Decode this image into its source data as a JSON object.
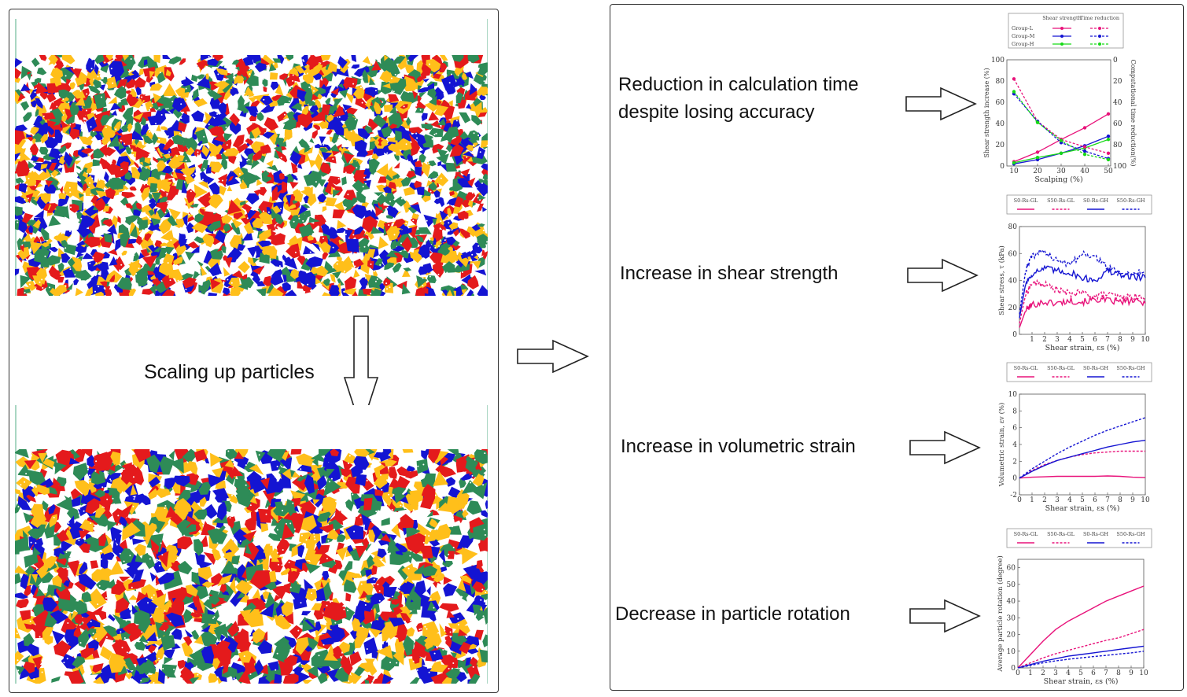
{
  "left": {
    "caption": "Scaling up particles",
    "colors": [
      "#e41a1c",
      "#1414d2",
      "#2e8b57",
      "#ffbf1a"
    ]
  },
  "right": {
    "rows": [
      {
        "label": [
          "Reduction in calculation time",
          "despite losing  accuracy"
        ]
      },
      {
        "label": [
          "Increase in shear strength"
        ]
      },
      {
        "label": [
          "Increase in volumetric strain"
        ]
      },
      {
        "label": [
          "Decrease in particle rotation"
        ]
      }
    ]
  },
  "chart_data": [
    {
      "type": "line",
      "title": "",
      "xlabel": "Scalping (%)",
      "ylabel": "Shear strength increase (%)",
      "y2label": "Computational time reduction(%)",
      "x": [
        10,
        20,
        30,
        40,
        50
      ],
      "xlim": [
        7,
        51
      ],
      "ylim": [
        0,
        100
      ],
      "y2lim": [
        100,
        0
      ],
      "xticks": [
        10,
        20,
        30,
        40,
        50
      ],
      "yticks": [
        0,
        20,
        40,
        60,
        80,
        100
      ],
      "y2ticks": [
        0,
        20,
        40,
        60,
        80,
        100
      ],
      "legend_headers": [
        "Shear strength",
        "Time reduction"
      ],
      "series": [
        {
          "name": "Group-L",
          "kind": "shear",
          "color": "#e8127a",
          "dashed": false,
          "values": [
            4,
            13,
            25,
            36,
            49
          ]
        },
        {
          "name": "Group-M",
          "kind": "shear",
          "color": "#1414d2",
          "dashed": false,
          "values": [
            2,
            6,
            12,
            19,
            28
          ]
        },
        {
          "name": "Group-H",
          "kind": "shear",
          "color": "#16d916",
          "dashed": false,
          "values": [
            3,
            8,
            12,
            17,
            25
          ]
        },
        {
          "name": "Group-L",
          "kind": "time",
          "color": "#e8127a",
          "dashed": true,
          "axis": "y2",
          "values": [
            18,
            58,
            75,
            82,
            88
          ]
        },
        {
          "name": "Group-M",
          "kind": "time",
          "color": "#1414d2",
          "dashed": true,
          "axis": "y2",
          "values": [
            32,
            58,
            78,
            86,
            93
          ]
        },
        {
          "name": "Group-H",
          "kind": "time",
          "color": "#16d916",
          "dashed": true,
          "axis": "y2",
          "values": [
            30,
            59,
            76,
            89,
            94
          ]
        }
      ]
    },
    {
      "type": "line",
      "title": "",
      "xlabel": "Shear strain, εs (%)",
      "ylabel": "Shear stress, τ (kPa)",
      "xlim": [
        0,
        10
      ],
      "ylim": [
        0,
        80
      ],
      "xticks": [
        1,
        2,
        3,
        4,
        5,
        6,
        7,
        8,
        9,
        10
      ],
      "yticks": [
        0,
        20,
        40,
        60,
        80
      ],
      "noisy": true,
      "series": [
        {
          "name": "S0-Rs-GL",
          "color": "#e8127a",
          "dashed": false,
          "x": [
            0,
            0.5,
            1,
            2,
            3,
            4,
            5,
            6,
            7,
            8,
            9,
            10
          ],
          "values": [
            5,
            18,
            22,
            24,
            23,
            25,
            24,
            26,
            25,
            24,
            25,
            23
          ]
        },
        {
          "name": "S50-Rs-GL",
          "color": "#e8127a",
          "dashed": true,
          "x": [
            0,
            0.5,
            1,
            2,
            3,
            4,
            5,
            6,
            7,
            8,
            9,
            10
          ],
          "values": [
            8,
            30,
            38,
            37,
            33,
            30,
            31,
            28,
            30,
            27,
            28,
            27
          ]
        },
        {
          "name": "S0-Rs-GH",
          "color": "#1414d2",
          "dashed": false,
          "x": [
            0,
            0.5,
            1,
            2,
            3,
            4,
            5,
            6,
            7,
            8,
            9,
            10
          ],
          "values": [
            12,
            38,
            45,
            49,
            47,
            46,
            42,
            40,
            47,
            44,
            43,
            42
          ]
        },
        {
          "name": "S50-Rs-GH",
          "color": "#1414d2",
          "dashed": true,
          "x": [
            0,
            0.5,
            1,
            2,
            3,
            4,
            5,
            6,
            7,
            8,
            9,
            10
          ],
          "values": [
            15,
            48,
            58,
            62,
            54,
            52,
            60,
            58,
            50,
            45,
            45,
            47
          ]
        }
      ]
    },
    {
      "type": "line",
      "title": "",
      "xlabel": "Shear strain, εs (%)",
      "ylabel": "Volumetric strain, εv (%)",
      "xlim": [
        0,
        10
      ],
      "ylim": [
        -2,
        10
      ],
      "xticks": [
        0,
        1,
        2,
        3,
        4,
        5,
        6,
        7,
        8,
        9,
        10
      ],
      "yticks": [
        -2,
        0,
        2,
        4,
        6,
        8,
        10
      ],
      "noisy": false,
      "series": [
        {
          "name": "S0-Rs-GL",
          "color": "#e8127a",
          "dashed": false,
          "x": [
            0,
            1,
            2,
            3,
            4,
            5,
            6,
            7,
            8,
            9,
            10
          ],
          "values": [
            0,
            0.1,
            0.15,
            0.2,
            0.2,
            0.2,
            0.2,
            0.25,
            0.2,
            0.1,
            0.05
          ]
        },
        {
          "name": "S50-Rs-GL",
          "color": "#e8127a",
          "dashed": true,
          "x": [
            0,
            1,
            2,
            3,
            4,
            5,
            6,
            7,
            8,
            9,
            10
          ],
          "values": [
            0,
            0.9,
            1.6,
            2.1,
            2.5,
            2.8,
            3.0,
            3.1,
            3.2,
            3.2,
            3.2
          ]
        },
        {
          "name": "S0-Rs-GH",
          "color": "#1414d2",
          "dashed": false,
          "x": [
            0,
            1,
            2,
            3,
            4,
            5,
            6,
            7,
            8,
            9,
            10
          ],
          "values": [
            0,
            0.8,
            1.5,
            2.1,
            2.5,
            2.9,
            3.3,
            3.7,
            4.0,
            4.3,
            4.5
          ]
        },
        {
          "name": "S50-Rs-GH",
          "color": "#1414d2",
          "dashed": true,
          "x": [
            0,
            1,
            2,
            3,
            4,
            5,
            6,
            7,
            8,
            9,
            10
          ],
          "values": [
            0,
            1.1,
            2.0,
            2.9,
            3.7,
            4.4,
            5.1,
            5.7,
            6.2,
            6.7,
            7.2
          ]
        }
      ]
    },
    {
      "type": "line",
      "title": "",
      "xlabel": "Shear strain, εs (%)",
      "ylabel": "Average particle rotation (degree)",
      "xlim": [
        0,
        10
      ],
      "ylim": [
        0,
        65
      ],
      "xticks": [
        0,
        1,
        2,
        3,
        4,
        5,
        6,
        7,
        8,
        9,
        10
      ],
      "yticks": [
        0,
        10,
        20,
        30,
        40,
        50,
        60
      ],
      "noisy": false,
      "series": [
        {
          "name": "S0-Rs-GL",
          "color": "#e8127a",
          "dashed": false,
          "x": [
            0,
            1,
            2,
            3,
            4,
            5,
            6,
            7,
            8,
            9,
            10
          ],
          "values": [
            0,
            8,
            16,
            23,
            28,
            32,
            36,
            40,
            43,
            46,
            49
          ]
        },
        {
          "name": "S50-Rs-GL",
          "color": "#e8127a",
          "dashed": true,
          "x": [
            0,
            1,
            2,
            3,
            4,
            5,
            6,
            7,
            8,
            9,
            10
          ],
          "values": [
            0,
            3,
            6,
            8.5,
            10.5,
            12.5,
            14.5,
            16.5,
            18,
            20.5,
            23
          ]
        },
        {
          "name": "S0-Rs-GH",
          "color": "#1414d2",
          "dashed": false,
          "x": [
            0,
            1,
            2,
            3,
            4,
            5,
            6,
            7,
            8,
            9,
            10
          ],
          "values": [
            0,
            2,
            4,
            5.5,
            7,
            8,
            9,
            10,
            11,
            12,
            13
          ]
        },
        {
          "name": "S50-Rs-GH",
          "color": "#1414d2",
          "dashed": true,
          "x": [
            0,
            1,
            2,
            3,
            4,
            5,
            6,
            7,
            8,
            9,
            10
          ],
          "values": [
            0,
            1.5,
            3,
            4.2,
            5.2,
            6,
            6.8,
            7.5,
            8.3,
            9,
            10
          ]
        }
      ]
    }
  ]
}
